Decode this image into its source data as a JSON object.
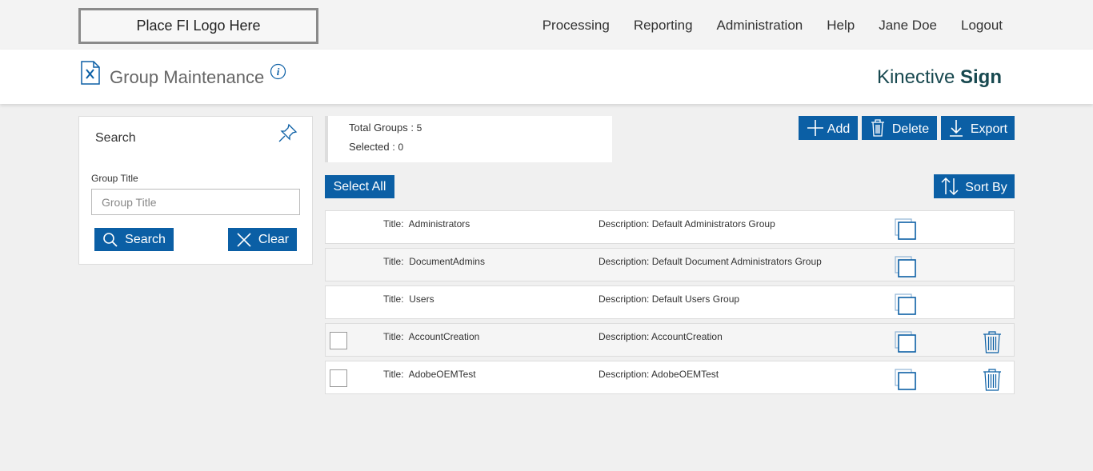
{
  "header": {
    "logo": "Place FI Logo Here",
    "nav": [
      "Processing",
      "Reporting",
      "Administration",
      "Help",
      "Jane Doe",
      "Logout"
    ]
  },
  "page": {
    "title": "Group Maintenance",
    "brand_light": "Kinective",
    "brand_bold": "Sign"
  },
  "search": {
    "title": "Search",
    "field_label": "Group Title",
    "placeholder": "Group Title",
    "search_button": "Search",
    "clear_button": "Clear"
  },
  "summary": {
    "total_label": "Total Groups :",
    "total": 5,
    "selected_label": "Selected :",
    "selected": 0
  },
  "actions": {
    "add": "Add",
    "delete": "Delete",
    "export": "Export",
    "select_all": "Select All",
    "sort_by": "Sort By"
  },
  "groups": {
    "title_label": "Title:",
    "description_label": "Description:",
    "rows": [
      {
        "title": "Administrators",
        "description": "Default Administrators Group",
        "selectable": false
      },
      {
        "title": "DocumentAdmins",
        "description": "Default Document Administrators Group",
        "selectable": false
      },
      {
        "title": "Users",
        "description": "Default Users Group",
        "selectable": false
      },
      {
        "title": "AccountCreation",
        "description": "AccountCreation",
        "selectable": true
      },
      {
        "title": "AdobeOEMTest",
        "description": "AdobeOEMTest",
        "selectable": true
      }
    ]
  }
}
